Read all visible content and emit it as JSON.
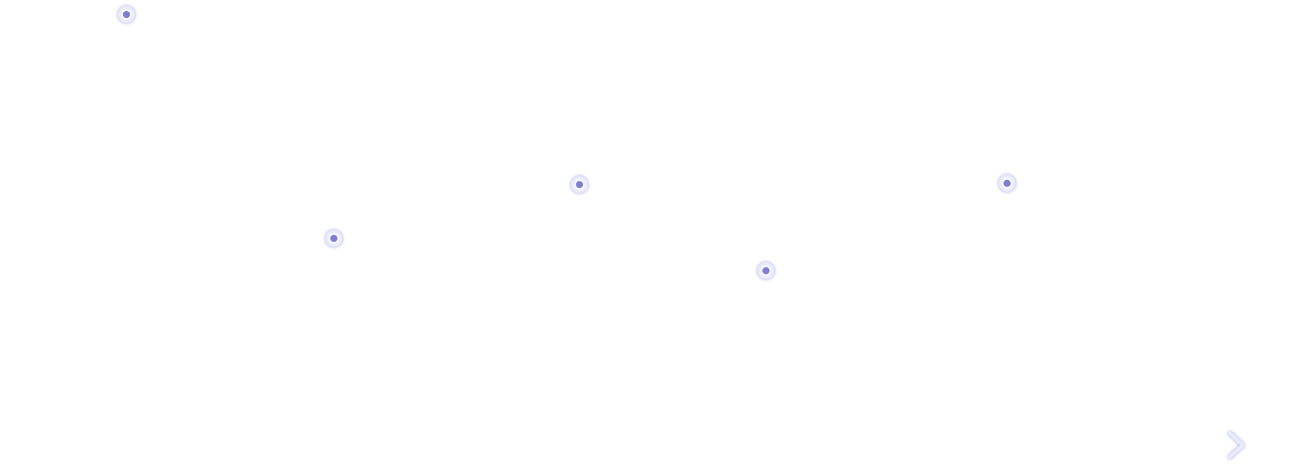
{
  "chart_data": {
    "type": "stem",
    "x": [
      1,
      2,
      3,
      4,
      5
    ],
    "values": [
      100,
      48,
      60.5,
      40.5,
      60.8
    ],
    "ylim": [
      0,
      100
    ],
    "grid": false,
    "legend": "none",
    "xlabel": "",
    "ylabel": "",
    "title": ""
  },
  "colors": {
    "line": "#ebebff",
    "glow": "#8e8edb",
    "marker_fill": "#ffffff",
    "marker_dot": "#7f7fd0",
    "background": "#ffffff"
  },
  "icons": {
    "axis_arrow": "chevron-right-icon"
  }
}
